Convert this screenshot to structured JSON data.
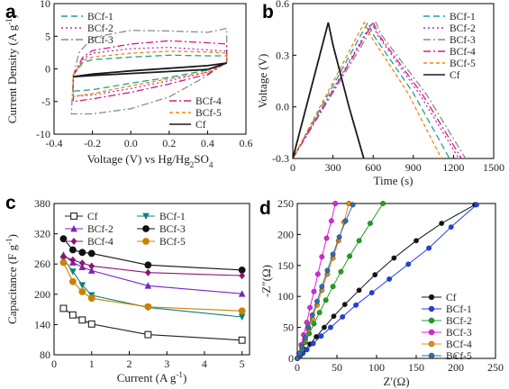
{
  "colors": {
    "Cf": "#1a1a1a",
    "BCf-1": "#1f9e9e",
    "BCf-2": "#b02cc4",
    "BCf-3": "#8a8a8a",
    "BCf-4": "#d61a82",
    "BCf-5": "#f08a00",
    "c_Cf": "#222222",
    "c_BCf-1": "#0f7f76",
    "c_BCf-2": "#7a20c8",
    "c_BCf-3": "#111111",
    "c_BCf-4": "#8e1470",
    "c_BCf-5": "#c98200",
    "d_Cf": "#111111",
    "d_BCf-1": "#1e3ff0",
    "d_BCf-2": "#1aa51a",
    "d_BCf-3": "#e61ee6",
    "d_BCf-4": "#f08a10",
    "d_BCf-5": "#2a6fb0"
  },
  "chart_data": [
    {
      "id": "a",
      "panel_letter": "a",
      "type": "line",
      "xlabel_parts": [
        "Voltage (V) vs Hg/Hg",
        "2",
        "SO",
        "4"
      ],
      "ylabel_parts": [
        "Current Density (A g",
        "-1",
        ")"
      ],
      "xlim": [
        -0.4,
        0.6
      ],
      "ylim": [
        -10,
        10
      ],
      "xticks": [
        "-0.4",
        "-0.2",
        "0.0",
        "0.2",
        "0.4",
        "0.6"
      ],
      "yticks": [
        "-10",
        "-5",
        "0",
        "5",
        "10"
      ],
      "legend_upper": [
        "BCf-1",
        "BCf-2",
        "BCf-3"
      ],
      "legend_lower": [
        "BCf-4",
        "BCf-5",
        "Cf"
      ],
      "series": [
        {
          "name": "BCf-1",
          "dash": "dash",
          "upper": [
            [
              -0.3,
              -1.0
            ],
            [
              -0.25,
              1.0
            ],
            [
              -0.2,
              1.4
            ],
            [
              0.0,
              1.8
            ],
            [
              0.2,
              2.1
            ],
            [
              0.4,
              2.0
            ],
            [
              0.5,
              2.0
            ],
            [
              0.5,
              1.1
            ]
          ],
          "lower": [
            [
              -0.3,
              -1.0
            ],
            [
              -0.3,
              -3.4
            ],
            [
              -0.2,
              -3.2
            ],
            [
              0.0,
              -2.2
            ],
            [
              0.2,
              -1.3
            ],
            [
              0.4,
              -0.2
            ],
            [
              0.5,
              1.0
            ]
          ]
        },
        {
          "name": "BCf-2",
          "dash": "dot",
          "upper": [
            [
              -0.3,
              -1.0
            ],
            [
              -0.25,
              1.5
            ],
            [
              -0.2,
              2.4
            ],
            [
              0.0,
              3.1
            ],
            [
              0.2,
              3.3
            ],
            [
              0.4,
              2.9
            ],
            [
              0.5,
              2.7
            ],
            [
              0.5,
              1.0
            ]
          ],
          "lower": [
            [
              -0.3,
              -1.0
            ],
            [
              -0.3,
              -4.2
            ],
            [
              -0.2,
              -4.0
            ],
            [
              0.0,
              -3.0
            ],
            [
              0.2,
              -1.8
            ],
            [
              0.4,
              -0.5
            ],
            [
              0.5,
              1.0
            ]
          ]
        },
        {
          "name": "BCf-3",
          "dash": "dashdot",
          "upper": [
            [
              -0.3,
              -1.2
            ],
            [
              -0.27,
              2.5
            ],
            [
              -0.2,
              4.8
            ],
            [
              0.0,
              5.9
            ],
            [
              0.2,
              5.8
            ],
            [
              0.4,
              5.6
            ],
            [
              0.5,
              6.2
            ],
            [
              0.5,
              1.2
            ]
          ],
          "lower": [
            [
              -0.3,
              -1.2
            ],
            [
              -0.31,
              -6.9
            ],
            [
              -0.2,
              -6.9
            ],
            [
              0.0,
              -6.1
            ],
            [
              0.2,
              -4.3
            ],
            [
              0.4,
              -1.0
            ],
            [
              0.5,
              1.2
            ]
          ]
        },
        {
          "name": "BCf-4",
          "dash": "dashdot",
          "upper": [
            [
              -0.3,
              -1.0
            ],
            [
              -0.25,
              1.8
            ],
            [
              -0.2,
              2.8
            ],
            [
              0.0,
              3.8
            ],
            [
              0.2,
              4.3
            ],
            [
              0.4,
              4.0
            ],
            [
              0.5,
              3.8
            ],
            [
              0.5,
              1.0
            ]
          ],
          "lower": [
            [
              -0.3,
              -1.0
            ],
            [
              -0.3,
              -5.0
            ],
            [
              -0.2,
              -4.6
            ],
            [
              0.0,
              -3.6
            ],
            [
              0.2,
              -2.3
            ],
            [
              0.4,
              -0.8
            ],
            [
              0.5,
              1.0
            ]
          ]
        },
        {
          "name": "BCf-5",
          "dash": "shortdash",
          "upper": [
            [
              -0.3,
              -1.0
            ],
            [
              -0.25,
              1.3
            ],
            [
              -0.2,
              1.8
            ],
            [
              0.0,
              2.4
            ],
            [
              0.2,
              2.7
            ],
            [
              0.4,
              2.6
            ],
            [
              0.5,
              2.4
            ],
            [
              0.5,
              1.0
            ]
          ],
          "lower": [
            [
              -0.3,
              -1.0
            ],
            [
              -0.3,
              -4.2
            ],
            [
              -0.2,
              -3.8
            ],
            [
              0.0,
              -2.6
            ],
            [
              0.2,
              -1.5
            ],
            [
              0.4,
              -0.5
            ],
            [
              0.5,
              1.0
            ]
          ]
        },
        {
          "name": "Cf",
          "dash": "solid",
          "upper": [
            [
              -0.3,
              -1.2
            ],
            [
              -0.2,
              -0.8
            ],
            [
              0.0,
              -0.3
            ],
            [
              0.2,
              0.1
            ],
            [
              0.4,
              0.5
            ],
            [
              0.5,
              0.9
            ]
          ],
          "lower": [
            [
              -0.3,
              -1.2
            ],
            [
              -0.2,
              -1.0
            ],
            [
              0.0,
              -0.7
            ],
            [
              0.2,
              -0.4
            ],
            [
              0.4,
              -0.1
            ],
            [
              0.5,
              0.9
            ]
          ]
        }
      ]
    },
    {
      "id": "b",
      "panel_letter": "b",
      "type": "line",
      "xlabel": "Time (s)",
      "ylabel": "Voltage (V)",
      "xlim": [
        0,
        1500
      ],
      "ylim": [
        -0.3,
        0.6
      ],
      "xticks": [
        "0",
        "300",
        "600",
        "900",
        "1200",
        "1500"
      ],
      "yticks": [
        "-0.3",
        "0.0",
        "0.3",
        "0.6"
      ],
      "legend": [
        "BCf-1",
        "BCf-2",
        "BCf-3",
        "BCf-4",
        "BCf-5",
        "Cf"
      ],
      "series": [
        {
          "name": "BCf-1",
          "dash": "dash",
          "points": [
            [
              0,
              -0.3
            ],
            [
              560,
              0.49
            ],
            [
              600,
              0.42
            ],
            [
              900,
              0.08
            ],
            [
              1170,
              -0.3
            ]
          ]
        },
        {
          "name": "BCf-2",
          "dash": "dot",
          "points": [
            [
              0,
              -0.3
            ],
            [
              590,
              0.49
            ],
            [
              630,
              0.42
            ],
            [
              950,
              0.07
            ],
            [
              1240,
              -0.3
            ]
          ]
        },
        {
          "name": "BCf-3",
          "dash": "dashdot",
          "points": [
            [
              0,
              -0.3
            ],
            [
              620,
              0.49
            ],
            [
              660,
              0.42
            ],
            [
              1000,
              0.07
            ],
            [
              1290,
              -0.3
            ]
          ]
        },
        {
          "name": "BCf-4",
          "dash": "dashdot",
          "points": [
            [
              0,
              -0.3
            ],
            [
              600,
              0.49
            ],
            [
              640,
              0.42
            ],
            [
              970,
              0.07
            ],
            [
              1260,
              -0.3
            ]
          ]
        },
        {
          "name": "BCf-5",
          "dash": "shortdash",
          "points": [
            [
              0,
              -0.3
            ],
            [
              535,
              0.49
            ],
            [
              575,
              0.42
            ],
            [
              860,
              0.08
            ],
            [
              1110,
              -0.3
            ]
          ]
        },
        {
          "name": "Cf",
          "dash": "solid",
          "points": [
            [
              0,
              -0.3
            ],
            [
              265,
              0.49
            ],
            [
              300,
              0.36
            ],
            [
              420,
              0.0
            ],
            [
              530,
              -0.3
            ]
          ]
        }
      ]
    },
    {
      "id": "c",
      "panel_letter": "c",
      "type": "line",
      "xlabel_parts": [
        "Current (A g",
        "-1",
        ")"
      ],
      "ylabel_parts": [
        "Capacitance (F g",
        "-1",
        ")"
      ],
      "xlim": [
        0,
        5.2
      ],
      "ylim": [
        80,
        380
      ],
      "xticks": [
        "0",
        "1",
        "2",
        "3",
        "4",
        "5"
      ],
      "yticks": [
        "80",
        "140",
        "200",
        "260",
        "320",
        "380"
      ],
      "legend": [
        "Cf",
        "BCf-1",
        "BCf-2",
        "BCf-3",
        "BCf-4",
        "BCf-5"
      ],
      "x": [
        0.25,
        0.5,
        0.75,
        1,
        2.5,
        5
      ],
      "series": [
        {
          "name": "Cf",
          "marker": "square-open",
          "values": [
            172,
            159,
            149,
            141,
            120,
            109
          ]
        },
        {
          "name": "BCf-1",
          "marker": "triangle-down",
          "values": [
            270,
            245,
            218,
            198,
            174,
            155
          ]
        },
        {
          "name": "BCf-2",
          "marker": "triangle-up",
          "values": [
            278,
            263,
            254,
            247,
            217,
            201
          ]
        },
        {
          "name": "BCf-3",
          "marker": "circle",
          "values": [
            310,
            288,
            283,
            281,
            258,
            248
          ]
        },
        {
          "name": "BCf-4",
          "marker": "diamond",
          "values": [
            275,
            268,
            262,
            256,
            243,
            237
          ]
        },
        {
          "name": "BCf-5",
          "marker": "circle",
          "values": [
            263,
            225,
            205,
            192,
            175,
            167
          ]
        }
      ]
    },
    {
      "id": "d",
      "panel_letter": "d",
      "type": "scatter",
      "xlabel": "Z′(Ω)",
      "ylabel": "-Z″(Ω)",
      "xlim": [
        0,
        250
      ],
      "ylim": [
        0,
        250
      ],
      "xticks": [
        "0",
        "50",
        "100",
        "150",
        "200",
        "250"
      ],
      "yticks": [
        "0",
        "50",
        "100",
        "150",
        "200",
        "250"
      ],
      "legend": [
        "Cf",
        "BCf-1",
        "BCf-2",
        "BCf-3",
        "BCf-4",
        "BCf-5"
      ],
      "series": [
        {
          "name": "Cf",
          "points": [
            [
              0,
              0
            ],
            [
              3,
              3
            ],
            [
              6,
              8
            ],
            [
              10,
              14
            ],
            [
              16,
              23
            ],
            [
              24,
              35
            ],
            [
              34,
              50
            ],
            [
              46,
              68
            ],
            [
              60,
              87
            ],
            [
              78,
              110
            ],
            [
              98,
              135
            ],
            [
              122,
              162
            ],
            [
              150,
              190
            ],
            [
              182,
              218
            ],
            [
              224,
              248
            ]
          ]
        },
        {
          "name": "BCf-1",
          "points": [
            [
              0,
              0
            ],
            [
              3,
              3
            ],
            [
              7,
              8
            ],
            [
              12,
              14
            ],
            [
              20,
              24
            ],
            [
              30,
              36
            ],
            [
              42,
              50
            ],
            [
              57,
              67
            ],
            [
              74,
              86
            ],
            [
              94,
              106
            ],
            [
              116,
              128
            ],
            [
              140,
              152
            ],
            [
              166,
              178
            ],
            [
              194,
              212
            ],
            [
              226,
              248
            ]
          ]
        },
        {
          "name": "BCf-2",
          "points": [
            [
              0,
              0
            ],
            [
              3,
              6
            ],
            [
              6,
              14
            ],
            [
              10,
              26
            ],
            [
              15,
              40
            ],
            [
              21,
              56
            ],
            [
              28,
              74
            ],
            [
              36,
              94
            ],
            [
              45,
              116
            ],
            [
              55,
              140
            ],
            [
              66,
              165
            ],
            [
              78,
              190
            ],
            [
              92,
              218
            ],
            [
              108,
              250
            ]
          ]
        },
        {
          "name": "BCf-3",
          "points": [
            [
              0,
              0
            ],
            [
              2,
              8
            ],
            [
              5,
              22
            ],
            [
              8,
              38
            ],
            [
              12,
              58
            ],
            [
              16,
              82
            ],
            [
              21,
              108
            ],
            [
              26,
              136
            ],
            [
              31,
              164
            ],
            [
              37,
              194
            ],
            [
              43,
              222
            ],
            [
              48,
              250
            ]
          ]
        },
        {
          "name": "BCf-4",
          "points": [
            [
              0,
              0
            ],
            [
              3,
              7
            ],
            [
              6,
              17
            ],
            [
              10,
              30
            ],
            [
              14,
              46
            ],
            [
              19,
              64
            ],
            [
              25,
              86
            ],
            [
              31,
              110
            ],
            [
              38,
              136
            ],
            [
              45,
              162
            ],
            [
              52,
              190
            ],
            [
              59,
              220
            ],
            [
              65,
              250
            ]
          ]
        },
        {
          "name": "BCf-5",
          "points": [
            [
              0,
              0
            ],
            [
              3,
              8
            ],
            [
              6,
              19
            ],
            [
              10,
              33
            ],
            [
              14,
              50
            ],
            [
              19,
              70
            ],
            [
              25,
              92
            ],
            [
              31,
              116
            ],
            [
              38,
              142
            ],
            [
              45,
              168
            ],
            [
              53,
              196
            ],
            [
              61,
              222
            ],
            [
              70,
              248
            ]
          ]
        }
      ]
    }
  ]
}
